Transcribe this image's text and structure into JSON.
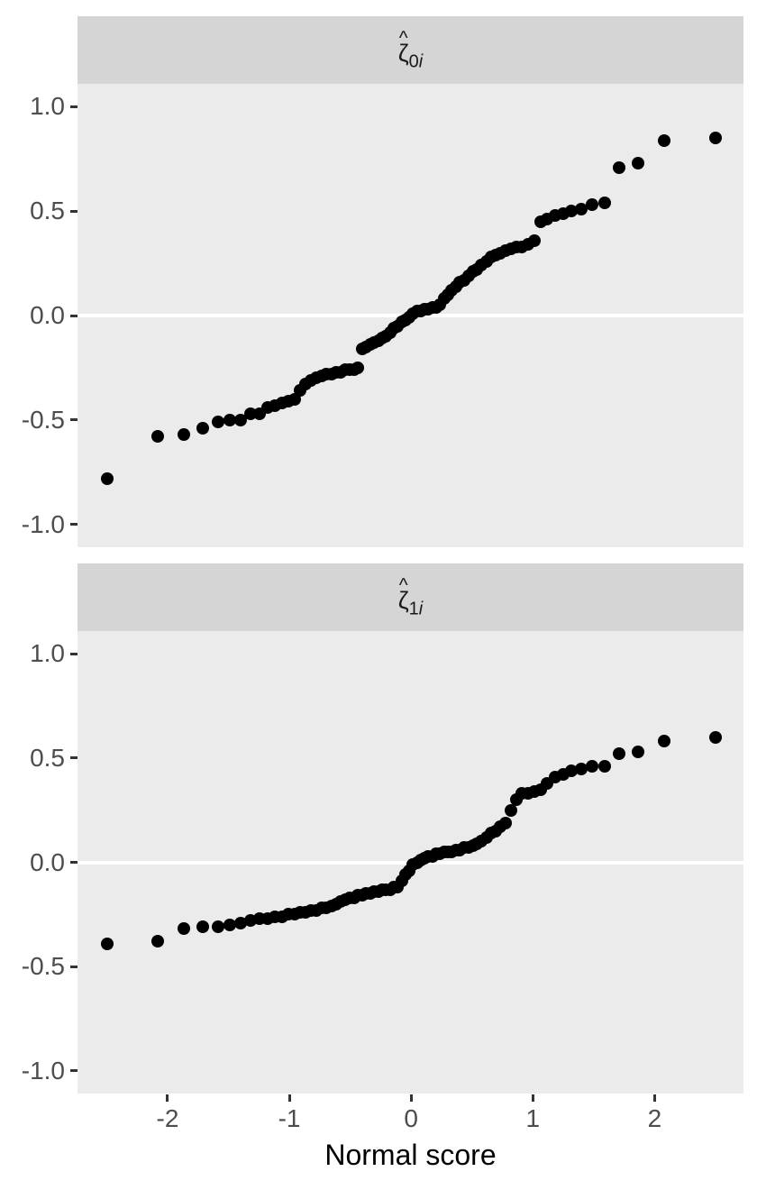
{
  "figure": {
    "axis_title": "Normal score",
    "x_tick_labels": [
      "-2",
      "-1",
      "0",
      "1",
      "2"
    ],
    "x_tick_values": [
      -2,
      -1,
      0,
      1,
      2
    ],
    "y_tick_labels": [
      "1.0",
      "0.5",
      "0.0",
      "-0.5",
      "-1.0"
    ],
    "y_tick_values": [
      1.0,
      0.5,
      0.0,
      -0.5,
      -1.0
    ]
  },
  "colors": {
    "page_background": "#FFFFFF",
    "panel_background": "#EBEBEB",
    "strip_background": "#D5D5D5",
    "point": "#000000",
    "zero_line": "#FFFFFF",
    "axis_text": "#4D4D4D",
    "tick_mark": "#333333"
  },
  "chart_data": [
    {
      "type": "scatter",
      "facet_label": "ζ̂0i",
      "strip": {
        "hat": "^",
        "symbol": "ζ",
        "subscript": "0",
        "subscript_var": "i"
      },
      "xlabel": "Normal score",
      "ylabel": "",
      "xlim": [
        -2.74,
        2.73
      ],
      "ylim": [
        -1.11,
        1.11
      ],
      "x_ticks": [
        -2,
        -1,
        0,
        1,
        2
      ],
      "y_ticks": [
        1.0,
        0.5,
        0.0,
        -0.5,
        -1.0
      ],
      "hline": 0,
      "grid": "no gridlines except white horizontal line at y=0",
      "legend": "none",
      "x": [
        -2.498,
        -2.08,
        -1.863,
        -1.709,
        -1.588,
        -1.487,
        -1.398,
        -1.318,
        -1.247,
        -1.181,
        -1.12,
        -1.063,
        -1.01,
        -0.959,
        -0.911,
        -0.865,
        -0.82,
        -0.777,
        -0.735,
        -0.694,
        -0.655,
        -0.617,
        -0.579,
        -0.542,
        -0.506,
        -0.471,
        -0.436,
        -0.402,
        -0.368,
        -0.335,
        -0.302,
        -0.269,
        -0.237,
        -0.205,
        -0.173,
        -0.141,
        -0.11,
        -0.078,
        -0.047,
        -0.016,
        0.016,
        0.047,
        0.078,
        0.11,
        0.141,
        0.173,
        0.205,
        0.237,
        0.269,
        0.302,
        0.335,
        0.368,
        0.402,
        0.436,
        0.471,
        0.506,
        0.542,
        0.579,
        0.617,
        0.655,
        0.694,
        0.735,
        0.777,
        0.82,
        0.865,
        0.911,
        0.959,
        1.01,
        1.063,
        1.12,
        1.181,
        1.247,
        1.318,
        1.398,
        1.487,
        1.588,
        1.709,
        1.863,
        2.08,
        2.498
      ],
      "y": [
        -0.78,
        -0.58,
        -0.57,
        -0.54,
        -0.51,
        -0.5,
        -0.5,
        -0.47,
        -0.47,
        -0.44,
        -0.43,
        -0.42,
        -0.41,
        -0.4,
        -0.36,
        -0.33,
        -0.31,
        -0.3,
        -0.29,
        -0.28,
        -0.28,
        -0.27,
        -0.27,
        -0.26,
        -0.26,
        -0.26,
        -0.25,
        -0.16,
        -0.15,
        -0.14,
        -0.13,
        -0.12,
        -0.11,
        -0.1,
        -0.08,
        -0.06,
        -0.05,
        -0.03,
        -0.02,
        -0.01,
        0.01,
        0.02,
        0.02,
        0.03,
        0.03,
        0.04,
        0.04,
        0.05,
        0.08,
        0.1,
        0.12,
        0.14,
        0.16,
        0.17,
        0.19,
        0.21,
        0.22,
        0.24,
        0.26,
        0.28,
        0.29,
        0.3,
        0.31,
        0.32,
        0.33,
        0.33,
        0.34,
        0.36,
        0.45,
        0.46,
        0.48,
        0.49,
        0.5,
        0.51,
        0.53,
        0.54,
        0.71,
        0.73,
        0.84,
        0.85
      ]
    },
    {
      "type": "scatter",
      "facet_label": "ζ̂1i",
      "strip": {
        "hat": "^",
        "symbol": "ζ",
        "subscript": "1",
        "subscript_var": "i"
      },
      "xlabel": "Normal score",
      "ylabel": "",
      "xlim": [
        -2.74,
        2.73
      ],
      "ylim": [
        -1.11,
        1.11
      ],
      "x_ticks": [
        -2,
        -1,
        0,
        1,
        2
      ],
      "y_ticks": [
        1.0,
        0.5,
        0.0,
        -0.5,
        -1.0
      ],
      "hline": 0,
      "grid": "no gridlines except white horizontal line at y=0",
      "legend": "none",
      "x": [
        -2.498,
        -2.08,
        -1.863,
        -1.709,
        -1.588,
        -1.487,
        -1.398,
        -1.318,
        -1.247,
        -1.181,
        -1.12,
        -1.063,
        -1.01,
        -0.959,
        -0.911,
        -0.865,
        -0.82,
        -0.777,
        -0.735,
        -0.694,
        -0.655,
        -0.617,
        -0.579,
        -0.542,
        -0.506,
        -0.471,
        -0.436,
        -0.402,
        -0.368,
        -0.335,
        -0.302,
        -0.269,
        -0.237,
        -0.205,
        -0.173,
        -0.141,
        -0.11,
        -0.078,
        -0.047,
        -0.016,
        0.016,
        0.047,
        0.078,
        0.11,
        0.141,
        0.173,
        0.205,
        0.237,
        0.269,
        0.302,
        0.335,
        0.368,
        0.402,
        0.436,
        0.471,
        0.506,
        0.542,
        0.579,
        0.617,
        0.655,
        0.694,
        0.735,
        0.777,
        0.82,
        0.865,
        0.911,
        0.959,
        1.01,
        1.063,
        1.12,
        1.181,
        1.247,
        1.318,
        1.398,
        1.487,
        1.588,
        1.709,
        1.863,
        2.08,
        2.498
      ],
      "y": [
        -0.39,
        -0.38,
        -0.32,
        -0.31,
        -0.31,
        -0.3,
        -0.29,
        -0.28,
        -0.27,
        -0.27,
        -0.26,
        -0.26,
        -0.25,
        -0.25,
        -0.24,
        -0.24,
        -0.23,
        -0.23,
        -0.22,
        -0.22,
        -0.21,
        -0.2,
        -0.19,
        -0.18,
        -0.17,
        -0.17,
        -0.16,
        -0.16,
        -0.15,
        -0.15,
        -0.14,
        -0.14,
        -0.13,
        -0.13,
        -0.13,
        -0.12,
        -0.12,
        -0.09,
        -0.06,
        -0.04,
        -0.01,
        0.0,
        0.01,
        0.02,
        0.03,
        0.03,
        0.04,
        0.04,
        0.05,
        0.05,
        0.05,
        0.06,
        0.06,
        0.07,
        0.07,
        0.08,
        0.09,
        0.1,
        0.12,
        0.14,
        0.15,
        0.17,
        0.19,
        0.25,
        0.3,
        0.33,
        0.33,
        0.34,
        0.35,
        0.38,
        0.41,
        0.42,
        0.44,
        0.45,
        0.46,
        0.46,
        0.52,
        0.53,
        0.58,
        0.6
      ]
    }
  ]
}
